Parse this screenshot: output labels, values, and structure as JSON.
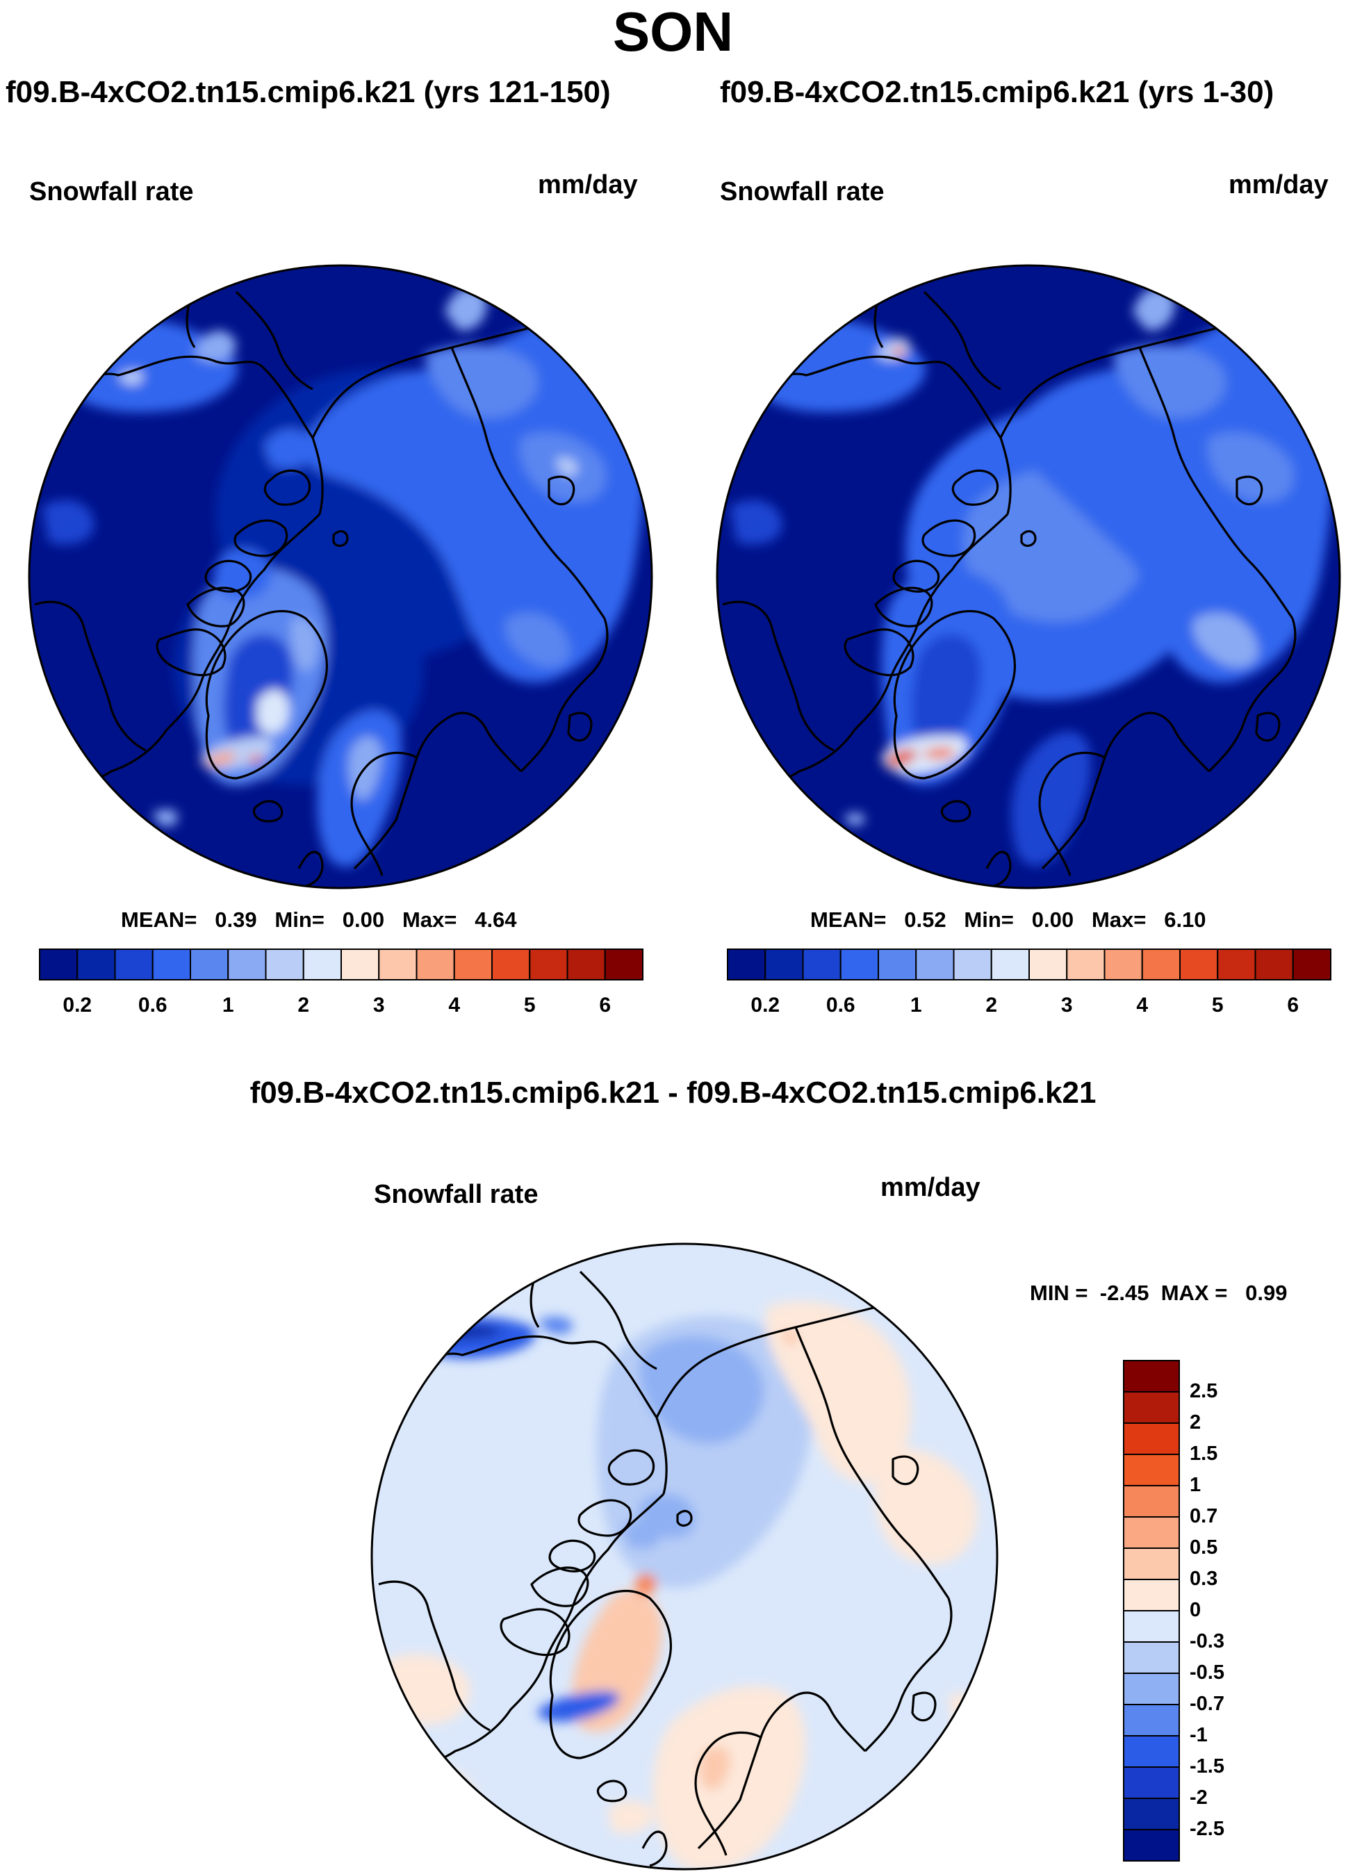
{
  "figure": {
    "season": "SON",
    "panel_left": {
      "title": "f09.B-4xCO2.tn15.cmip6.k21 (yrs 121-150)",
      "variable": "Snowfall rate",
      "units": "mm/day",
      "mean_label": "MEAN=",
      "mean": "0.39",
      "min_label": "Min=",
      "min": "0.00",
      "max_label": "Max=",
      "max": "4.64"
    },
    "panel_right": {
      "title": "f09.B-4xCO2.tn15.cmip6.k21 (yrs 1-30)",
      "variable": "Snowfall rate",
      "units": "mm/day",
      "mean_label": "MEAN=",
      "mean": "0.52",
      "min_label": "Min=",
      "min": "0.00",
      "max_label": "Max=",
      "max": "6.10"
    },
    "panel_diff": {
      "title": "f09.B-4xCO2.tn15.cmip6.k21 - f09.B-4xCO2.tn15.cmip6.k21",
      "variable": "Snowfall rate",
      "units": "mm/day",
      "min_label": "MIN =",
      "min": "-2.45",
      "max_label": "MAX =",
      "max": "0.99"
    },
    "colorbar_seq": {
      "ticks": [
        "0.2",
        "0.6",
        "1",
        "2",
        "3",
        "4",
        "5",
        "6"
      ],
      "colors": [
        "#00128a",
        "#0626a8",
        "#1a44d1",
        "#3366ee",
        "#5a86f0",
        "#8aaaf3",
        "#b9cdf6",
        "#dbe8fb",
        "#fde7d9",
        "#fcc7ab",
        "#f9a07a",
        "#f47548",
        "#e54a22",
        "#c72a10",
        "#b01c09",
        "#800000"
      ]
    },
    "colorbar_diff": {
      "ticks": [
        "2.5",
        "2",
        "1.5",
        "1",
        "0.7",
        "0.5",
        "0.3",
        "0",
        "-0.3",
        "-0.5",
        "-0.7",
        "-1",
        "-1.5",
        "-2",
        "-2.5"
      ],
      "colors": [
        "#800000",
        "#b01c09",
        "#e03a12",
        "#f05a25",
        "#f6875a",
        "#faa884",
        "#fcc9ad",
        "#fde8da",
        "#dbe8fb",
        "#b7cdf6",
        "#8fb0f3",
        "#5a86f0",
        "#2b5ce8",
        "#1a3ecb",
        "#0a27a3",
        "#00128a"
      ]
    }
  }
}
